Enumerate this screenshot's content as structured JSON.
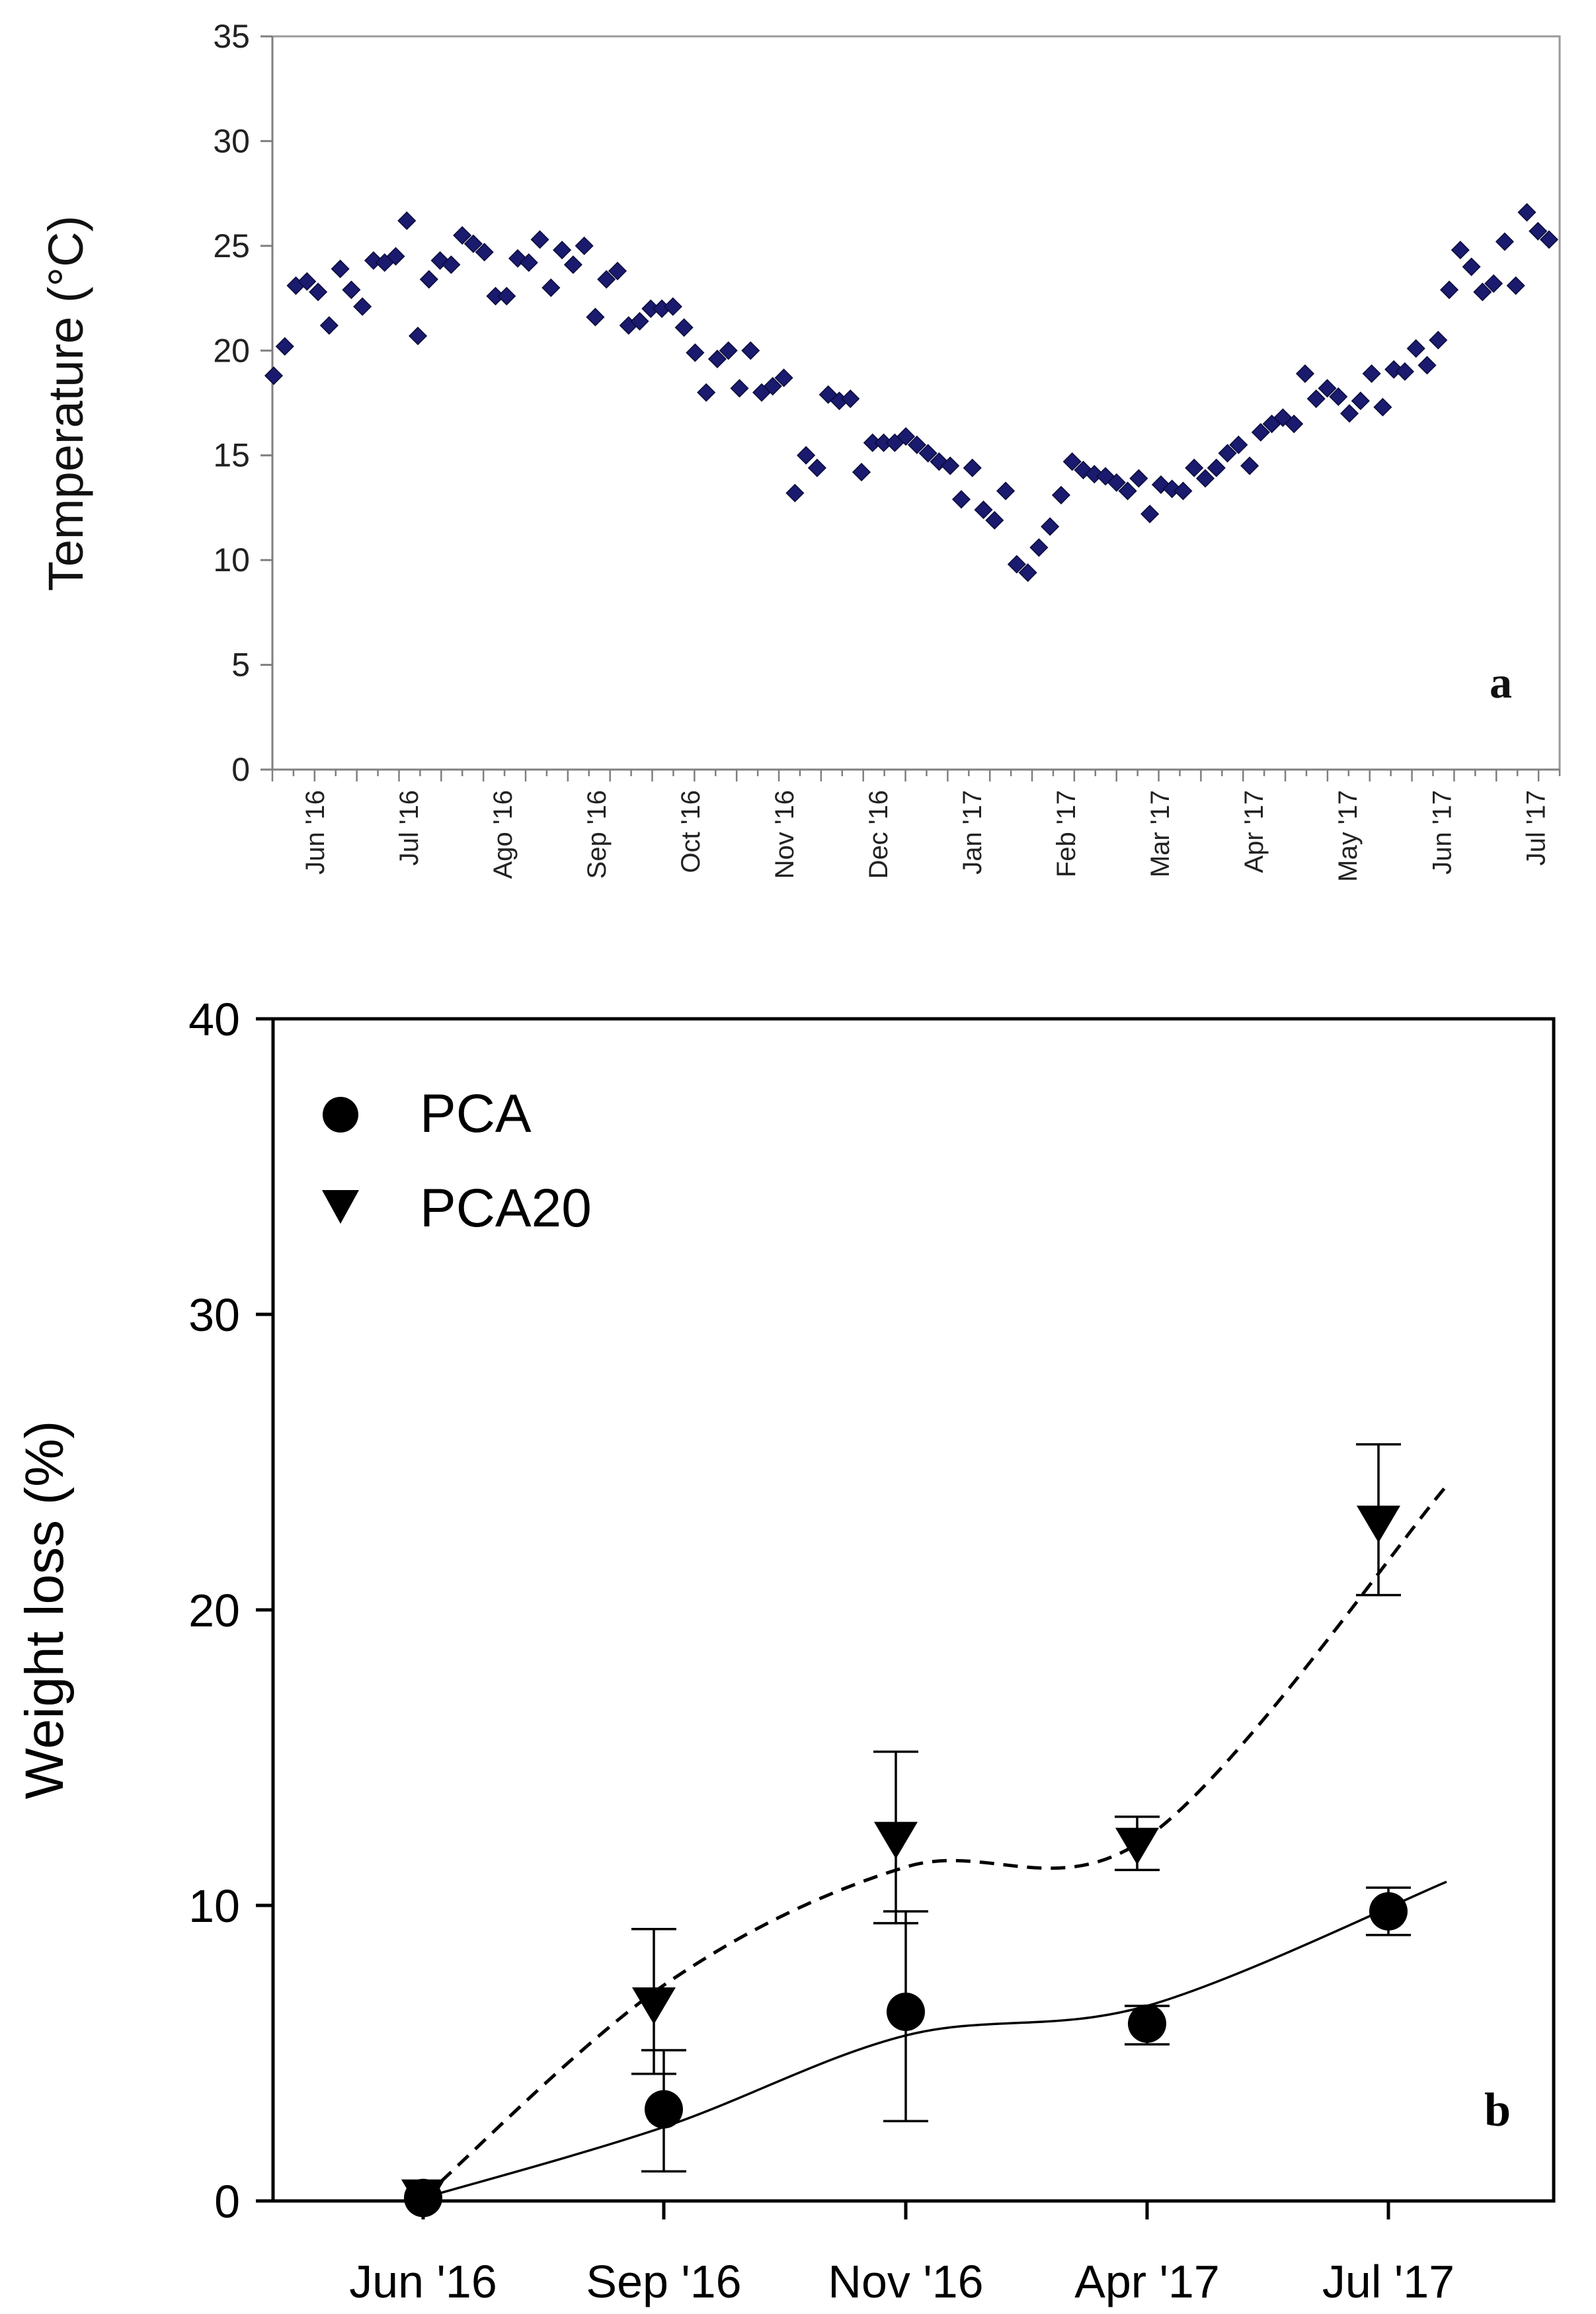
{
  "chart_data": [
    {
      "type": "scatter",
      "panel_letter": "a",
      "title": "",
      "xlabel": "",
      "ylabel": "Temperature (°C)",
      "ylim": [
        0,
        35
      ],
      "yticks": [
        0,
        5,
        10,
        15,
        20,
        25,
        30,
        35
      ],
      "grid": false,
      "marker": "diamond",
      "marker_color": "#1a1a6e",
      "month_labels": [
        "Jun '16",
        "Jul '16",
        "Ago '16",
        "Sep '16",
        "Oct '16",
        "Nov '16",
        "Dec '16",
        "Jan '17",
        "Feb '17",
        "Mar '17",
        "Apr '17",
        "May '17",
        "Jun '17",
        "Jul '17"
      ],
      "x_range_weeks": [
        0,
        61
      ],
      "series": [
        {
          "name": "Temperature",
          "values": [
            18.8,
            20.2,
            23.1,
            23.3,
            22.8,
            21.2,
            23.9,
            22.9,
            22.1,
            24.3,
            24.2,
            24.5,
            26.2,
            20.7,
            23.4,
            24.3,
            24.1,
            25.5,
            25.1,
            24.7,
            22.6,
            22.6,
            24.4,
            24.2,
            25.3,
            23.0,
            24.8,
            24.1,
            25.0,
            21.6,
            23.4,
            23.8,
            21.2,
            21.4,
            22.0,
            22.0,
            22.1,
            21.1,
            19.9,
            18.0,
            19.6,
            20.0,
            18.2,
            20.0,
            18.0,
            18.3,
            18.7,
            13.2,
            15.0,
            14.4,
            17.9,
            17.6,
            17.7,
            14.2,
            15.6,
            15.6,
            15.6,
            15.9,
            15.5,
            15.1,
            14.7,
            14.5,
            12.9,
            14.4,
            12.4,
            11.9,
            13.3,
            9.8,
            9.4,
            10.6,
            11.6,
            13.1,
            14.7,
            14.3,
            14.1,
            14.0,
            13.7,
            13.3,
            13.9,
            12.2,
            13.6,
            13.4,
            13.3,
            14.4,
            13.9,
            14.4,
            15.1,
            15.5,
            14.5,
            16.1,
            16.5,
            16.8,
            16.5,
            18.9,
            17.7,
            18.2,
            17.8,
            17.0,
            17.6,
            18.9,
            17.3,
            19.1,
            19.0,
            20.1,
            19.3,
            20.5,
            22.9,
            24.8,
            24.0,
            22.8,
            23.2,
            25.2,
            23.1,
            26.6,
            25.7,
            25.3
          ]
        }
      ]
    },
    {
      "type": "line",
      "panel_letter": "b",
      "title": "",
      "xlabel": "",
      "ylabel": "Weight loss (%)",
      "ylim": [
        0,
        40
      ],
      "yticks": [
        0,
        10,
        20,
        30,
        40
      ],
      "grid": false,
      "legend_position": "top-left",
      "categories": [
        "Jun '16",
        "Sep '16",
        "Nov '16",
        "Apr '17",
        "Jul '17"
      ],
      "series": [
        {
          "name": "PCA",
          "marker": "circle",
          "line_style": "solid",
          "values": [
            0.1,
            3.1,
            6.4,
            6.0,
            9.8
          ],
          "error_low": [
            0.1,
            1.0,
            2.7,
            5.3,
            9.0
          ],
          "error_high": [
            0.2,
            5.1,
            9.8,
            6.6,
            10.6
          ],
          "fit_curve": [
            0.1,
            2.5,
            5.6,
            6.6,
            10.8
          ]
        },
        {
          "name": "PCA20",
          "marker": "triangle-down",
          "line_style": "dashed",
          "values": [
            0.1,
            6.6,
            12.2,
            12.0,
            22.9
          ],
          "error_low": [
            0.1,
            4.3,
            9.4,
            11.2,
            20.5
          ],
          "error_high": [
            0.2,
            9.2,
            15.2,
            13.0,
            25.6
          ],
          "fit_curve": [
            0.1,
            7.3,
            11.3,
            12.3,
            24.2
          ]
        }
      ]
    }
  ]
}
